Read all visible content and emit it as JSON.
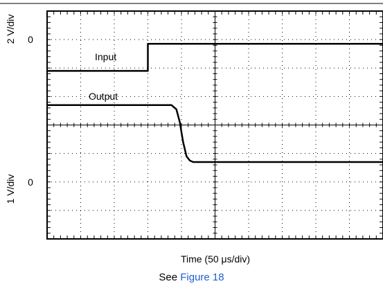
{
  "chart_data": {
    "type": "line",
    "xlabel_prefix": "Time (50 ",
    "xlabel_unit": "μs/div)",
    "grid": true,
    "x_divisions": 10,
    "y_divisions": 8,
    "upper_channel": {
      "scale_label": "2 V/div",
      "zero_label": "0"
    },
    "lower_channel": {
      "scale_label": "1 V/div",
      "zero_label": "0"
    },
    "series": [
      {
        "name": "Input",
        "points_div": [
          [
            0,
            5.9
          ],
          [
            3.0,
            5.9
          ],
          [
            3.0,
            6.85
          ],
          [
            10,
            6.85
          ]
        ]
      },
      {
        "name": "Output",
        "points_div": [
          [
            0,
            4.7
          ],
          [
            3.7,
            4.7
          ],
          [
            3.85,
            4.55
          ],
          [
            3.95,
            4.1
          ],
          [
            4.05,
            3.4
          ],
          [
            4.15,
            2.9
          ],
          [
            4.25,
            2.75
          ],
          [
            4.35,
            2.7
          ],
          [
            10,
            2.7
          ]
        ]
      }
    ]
  },
  "footer": {
    "see_text": "See ",
    "figure_ref": "Figure 18"
  }
}
